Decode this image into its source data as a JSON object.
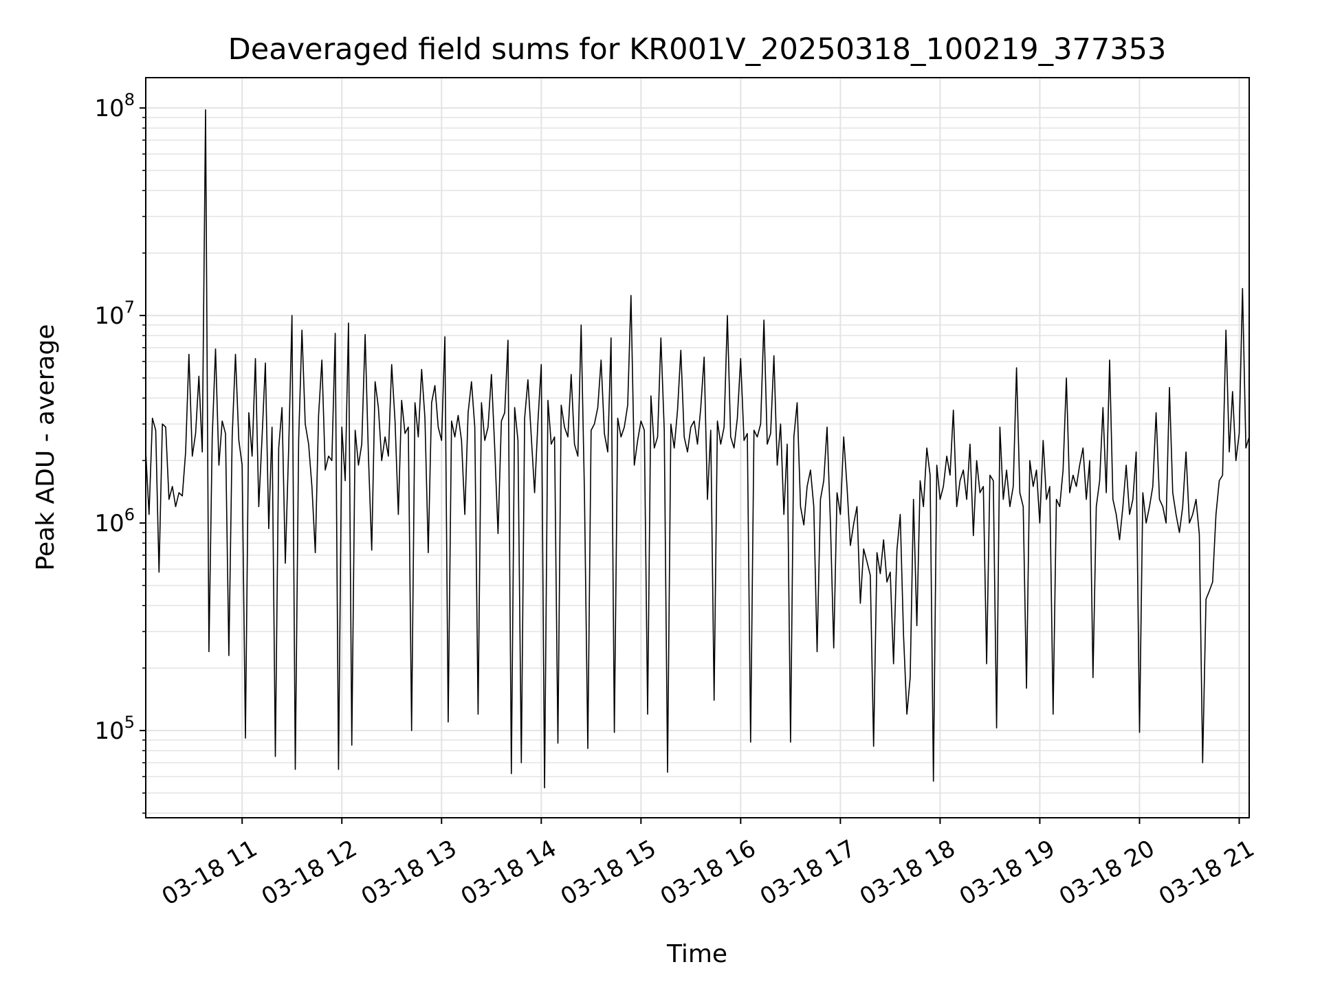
{
  "chart_data": {
    "type": "line",
    "title": "Deaveraged field sums for KR001V_20250318_100219_377353",
    "xlabel": "Time",
    "ylabel": "Peak ADU - average",
    "yscale": "log",
    "grid": true,
    "legend": "none",
    "x_start": "03-18 10:02",
    "x_end": "03-18 21:06",
    "xlim": [
      "03-18 10:02",
      "03-18 21:06"
    ],
    "ylim": [
      38000,
      140000000
    ],
    "x_ticks": [
      {
        "t": "03-18 11:00",
        "label": "03-18 11"
      },
      {
        "t": "03-18 12:00",
        "label": "03-18 12"
      },
      {
        "t": "03-18 13:00",
        "label": "03-18 13"
      },
      {
        "t": "03-18 14:00",
        "label": "03-18 14"
      },
      {
        "t": "03-18 15:00",
        "label": "03-18 15"
      },
      {
        "t": "03-18 16:00",
        "label": "03-18 16"
      },
      {
        "t": "03-18 17:00",
        "label": "03-18 17"
      },
      {
        "t": "03-18 18:00",
        "label": "03-18 18"
      },
      {
        "t": "03-18 19:00",
        "label": "03-18 19"
      },
      {
        "t": "03-18 20:00",
        "label": "03-18 20"
      },
      {
        "t": "03-18 21:00",
        "label": "03-18 21"
      }
    ],
    "y_ticks": [
      {
        "value": 100000,
        "base": "10",
        "exp": "5"
      },
      {
        "value": 1000000,
        "base": "10",
        "exp": "6"
      },
      {
        "value": 10000000,
        "base": "10",
        "exp": "7"
      },
      {
        "value": 100000000,
        "base": "10",
        "exp": "8"
      }
    ],
    "series": [
      {
        "line_color": "#000000",
        "sampling": "sparse approximation of a dense series (~1 sample per 2 minutes)",
        "x": [
          "03-18 10:02",
          "03-18 10:04",
          "03-18 10:06",
          "03-18 10:08",
          "03-18 10:10",
          "03-18 10:12",
          "03-18 10:14",
          "03-18 10:16",
          "03-18 10:18",
          "03-18 10:20",
          "03-18 10:22",
          "03-18 10:24",
          "03-18 10:26",
          "03-18 10:28",
          "03-18 10:30",
          "03-18 10:32",
          "03-18 10:34",
          "03-18 10:36",
          "03-18 10:38",
          "03-18 10:40",
          "03-18 10:42",
          "03-18 10:44",
          "03-18 10:46",
          "03-18 10:48",
          "03-18 10:50",
          "03-18 10:52",
          "03-18 10:54",
          "03-18 10:56",
          "03-18 10:58",
          "03-18 11:00",
          "03-18 11:02",
          "03-18 11:04",
          "03-18 11:06",
          "03-18 11:08",
          "03-18 11:10",
          "03-18 11:12",
          "03-18 11:14",
          "03-18 11:16",
          "03-18 11:18",
          "03-18 11:20",
          "03-18 11:22",
          "03-18 11:24",
          "03-18 11:26",
          "03-18 11:28",
          "03-18 11:30",
          "03-18 11:32",
          "03-18 11:34",
          "03-18 11:36",
          "03-18 11:38",
          "03-18 11:40",
          "03-18 11:42",
          "03-18 11:44",
          "03-18 11:46",
          "03-18 11:48",
          "03-18 11:50",
          "03-18 11:52",
          "03-18 11:54",
          "03-18 11:56",
          "03-18 11:58",
          "03-18 12:00",
          "03-18 12:02",
          "03-18 12:04",
          "03-18 12:06",
          "03-18 12:08",
          "03-18 12:10",
          "03-18 12:12",
          "03-18 12:14",
          "03-18 12:16",
          "03-18 12:18",
          "03-18 12:20",
          "03-18 12:22",
          "03-18 12:24",
          "03-18 12:26",
          "03-18 12:28",
          "03-18 12:30",
          "03-18 12:32",
          "03-18 12:34",
          "03-18 12:36",
          "03-18 12:38",
          "03-18 12:40",
          "03-18 12:42",
          "03-18 12:44",
          "03-18 12:46",
          "03-18 12:48",
          "03-18 12:50",
          "03-18 12:52",
          "03-18 12:54",
          "03-18 12:56",
          "03-18 12:58",
          "03-18 13:00",
          "03-18 13:02",
          "03-18 13:04",
          "03-18 13:06",
          "03-18 13:08",
          "03-18 13:10",
          "03-18 13:12",
          "03-18 13:14",
          "03-18 13:16",
          "03-18 13:18",
          "03-18 13:20",
          "03-18 13:22",
          "03-18 13:24",
          "03-18 13:26",
          "03-18 13:28",
          "03-18 13:30",
          "03-18 13:32",
          "03-18 13:34",
          "03-18 13:36",
          "03-18 13:38",
          "03-18 13:40",
          "03-18 13:42",
          "03-18 13:44",
          "03-18 13:46",
          "03-18 13:48",
          "03-18 13:50",
          "03-18 13:52",
          "03-18 13:54",
          "03-18 13:56",
          "03-18 13:58",
          "03-18 14:00",
          "03-18 14:02",
          "03-18 14:04",
          "03-18 14:06",
          "03-18 14:08",
          "03-18 14:10",
          "03-18 14:12",
          "03-18 14:14",
          "03-18 14:16",
          "03-18 14:18",
          "03-18 14:20",
          "03-18 14:22",
          "03-18 14:24",
          "03-18 14:26",
          "03-18 14:28",
          "03-18 14:30",
          "03-18 14:32",
          "03-18 14:34",
          "03-18 14:36",
          "03-18 14:38",
          "03-18 14:40",
          "03-18 14:42",
          "03-18 14:44",
          "03-18 14:46",
          "03-18 14:48",
          "03-18 14:50",
          "03-18 14:52",
          "03-18 14:54",
          "03-18 14:56",
          "03-18 14:58",
          "03-18 15:00",
          "03-18 15:02",
          "03-18 15:04",
          "03-18 15:06",
          "03-18 15:08",
          "03-18 15:10",
          "03-18 15:12",
          "03-18 15:14",
          "03-18 15:16",
          "03-18 15:18",
          "03-18 15:20",
          "03-18 15:22",
          "03-18 15:24",
          "03-18 15:26",
          "03-18 15:28",
          "03-18 15:30",
          "03-18 15:32",
          "03-18 15:34",
          "03-18 15:36",
          "03-18 15:38",
          "03-18 15:40",
          "03-18 15:42",
          "03-18 15:44",
          "03-18 15:46",
          "03-18 15:48",
          "03-18 15:50",
          "03-18 15:52",
          "03-18 15:54",
          "03-18 15:56",
          "03-18 15:58",
          "03-18 16:00",
          "03-18 16:02",
          "03-18 16:04",
          "03-18 16:06",
          "03-18 16:08",
          "03-18 16:10",
          "03-18 16:12",
          "03-18 16:14",
          "03-18 16:16",
          "03-18 16:18",
          "03-18 16:20",
          "03-18 16:22",
          "03-18 16:24",
          "03-18 16:26",
          "03-18 16:28",
          "03-18 16:30",
          "03-18 16:32",
          "03-18 16:34",
          "03-18 16:36",
          "03-18 16:38",
          "03-18 16:40",
          "03-18 16:42",
          "03-18 16:44",
          "03-18 16:46",
          "03-18 16:48",
          "03-18 16:50",
          "03-18 16:52",
          "03-18 16:54",
          "03-18 16:56",
          "03-18 16:58",
          "03-18 17:00",
          "03-18 17:02",
          "03-18 17:04",
          "03-18 17:06",
          "03-18 17:08",
          "03-18 17:10",
          "03-18 17:12",
          "03-18 17:14",
          "03-18 17:16",
          "03-18 17:18",
          "03-18 17:20",
          "03-18 17:22",
          "03-18 17:24",
          "03-18 17:26",
          "03-18 17:28",
          "03-18 17:30",
          "03-18 17:32",
          "03-18 17:34",
          "03-18 17:36",
          "03-18 17:38",
          "03-18 17:40",
          "03-18 17:42",
          "03-18 17:44",
          "03-18 17:46",
          "03-18 17:48",
          "03-18 17:50",
          "03-18 17:52",
          "03-18 17:54",
          "03-18 17:56",
          "03-18 17:58",
          "03-18 18:00",
          "03-18 18:02",
          "03-18 18:04",
          "03-18 18:06",
          "03-18 18:08",
          "03-18 18:10",
          "03-18 18:12",
          "03-18 18:14",
          "03-18 18:16",
          "03-18 18:18",
          "03-18 18:20",
          "03-18 18:22",
          "03-18 18:24",
          "03-18 18:26",
          "03-18 18:28",
          "03-18 18:30",
          "03-18 18:32",
          "03-18 18:34",
          "03-18 18:36",
          "03-18 18:38",
          "03-18 18:40",
          "03-18 18:42",
          "03-18 18:44",
          "03-18 18:46",
          "03-18 18:48",
          "03-18 18:50",
          "03-18 18:52",
          "03-18 18:54",
          "03-18 18:56",
          "03-18 18:58",
          "03-18 19:00",
          "03-18 19:02",
          "03-18 19:04",
          "03-18 19:06",
          "03-18 19:08",
          "03-18 19:10",
          "03-18 19:12",
          "03-18 19:14",
          "03-18 19:16",
          "03-18 19:18",
          "03-18 19:20",
          "03-18 19:22",
          "03-18 19:24",
          "03-18 19:26",
          "03-18 19:28",
          "03-18 19:30",
          "03-18 19:32",
          "03-18 19:34",
          "03-18 19:36",
          "03-18 19:38",
          "03-18 19:40",
          "03-18 19:42",
          "03-18 19:44",
          "03-18 19:46",
          "03-18 19:48",
          "03-18 19:50",
          "03-18 19:52",
          "03-18 19:54",
          "03-18 19:56",
          "03-18 19:58",
          "03-18 20:00",
          "03-18 20:02",
          "03-18 20:04",
          "03-18 20:06",
          "03-18 20:08",
          "03-18 20:10",
          "03-18 20:12",
          "03-18 20:14",
          "03-18 20:16",
          "03-18 20:18",
          "03-18 20:20",
          "03-18 20:22",
          "03-18 20:24",
          "03-18 20:26",
          "03-18 20:28",
          "03-18 20:30",
          "03-18 20:32",
          "03-18 20:34",
          "03-18 20:36",
          "03-18 20:38",
          "03-18 20:40",
          "03-18 20:42",
          "03-18 20:44",
          "03-18 20:46",
          "03-18 20:48",
          "03-18 20:50",
          "03-18 20:52",
          "03-18 20:54",
          "03-18 20:56",
          "03-18 20:58",
          "03-18 21:00",
          "03-18 21:02",
          "03-18 21:04",
          "03-18 21:06"
        ],
        "y": [
          2200000,
          1100000,
          3200000,
          2800000,
          580000,
          3000000,
          2900000,
          1300000,
          1500000,
          1200000,
          1400000,
          1350000,
          2200000,
          6500000,
          2100000,
          2700000,
          5100000,
          2200000,
          98000000,
          240000,
          2600000,
          6900000,
          1900000,
          3100000,
          2700000,
          230000,
          2600000,
          6500000,
          2500000,
          1900000,
          92000,
          3400000,
          2100000,
          6200000,
          1200000,
          2600000,
          5900000,
          940000,
          2900000,
          75000,
          2300000,
          3600000,
          640000,
          2300000,
          10000000,
          65000,
          2500000,
          8500000,
          3000000,
          2400000,
          1500000,
          720000,
          3300000,
          6100000,
          1800000,
          2100000,
          2000000,
          8200000,
          65000,
          2900000,
          1600000,
          9200000,
          85000,
          2800000,
          1900000,
          2400000,
          8100000,
          2100000,
          740000,
          4800000,
          3600000,
          2000000,
          2600000,
          2100000,
          5800000,
          3100000,
          1100000,
          3900000,
          2700000,
          2900000,
          100000,
          3800000,
          2600000,
          5500000,
          3200000,
          720000,
          3800000,
          4600000,
          2900000,
          2500000,
          7900000,
          110000,
          3100000,
          2600000,
          3300000,
          2500000,
          1100000,
          3400000,
          4800000,
          2900000,
          120000,
          3800000,
          2500000,
          2900000,
          5200000,
          2300000,
          890000,
          3100000,
          3400000,
          7600000,
          62000,
          3600000,
          2500000,
          70000,
          3200000,
          4900000,
          2600000,
          1400000,
          3100000,
          5800000,
          53000,
          3900000,
          2400000,
          2600000,
          87000,
          3700000,
          2900000,
          2600000,
          5200000,
          2400000,
          2100000,
          9000000,
          1400000,
          82000,
          2800000,
          3000000,
          3600000,
          6100000,
          2700000,
          2200000,
          7800000,
          98000,
          3200000,
          2600000,
          2900000,
          3700000,
          12500000,
          1900000,
          2500000,
          3100000,
          2800000,
          120000,
          4100000,
          2300000,
          2600000,
          7800000,
          2800000,
          63000,
          3000000,
          2300000,
          3500000,
          6800000,
          2600000,
          2200000,
          2900000,
          3100000,
          2400000,
          3600000,
          6300000,
          1300000,
          2800000,
          140000,
          3100000,
          2400000,
          2900000,
          10000000,
          2600000,
          2300000,
          3200000,
          6200000,
          2500000,
          2700000,
          88000,
          2800000,
          2600000,
          3000000,
          9500000,
          2400000,
          2700000,
          6400000,
          1900000,
          3000000,
          1100000,
          2400000,
          88000,
          2600000,
          3800000,
          1200000,
          980000,
          1500000,
          1800000,
          1200000,
          240000,
          1300000,
          1600000,
          2900000,
          1000000,
          250000,
          1400000,
          1100000,
          2600000,
          1500000,
          780000,
          990000,
          1200000,
          410000,
          750000,
          650000,
          560000,
          84000,
          720000,
          570000,
          830000,
          520000,
          580000,
          210000,
          740000,
          1100000,
          290000,
          120000,
          180000,
          1300000,
          320000,
          1600000,
          1200000,
          2300000,
          1700000,
          57000,
          1900000,
          1300000,
          1500000,
          2100000,
          1700000,
          3500000,
          1200000,
          1600000,
          1800000,
          1300000,
          2400000,
          870000,
          2000000,
          1400000,
          1500000,
          210000,
          1700000,
          1600000,
          103000,
          2900000,
          1300000,
          1800000,
          1200000,
          1500000,
          5600000,
          1400000,
          1200000,
          160000,
          2000000,
          1500000,
          1800000,
          1000000,
          2500000,
          1300000,
          1500000,
          120000,
          1300000,
          1200000,
          1800000,
          5000000,
          1400000,
          1700000,
          1500000,
          1900000,
          2300000,
          1300000,
          2000000,
          180000,
          1200000,
          1600000,
          3600000,
          1400000,
          6100000,
          1300000,
          1100000,
          830000,
          1200000,
          1900000,
          1100000,
          1300000,
          2200000,
          98000,
          1400000,
          1000000,
          1200000,
          1500000,
          3400000,
          1300000,
          1200000,
          1000000,
          4500000,
          1400000,
          1100000,
          900000,
          1200000,
          2200000,
          1000000,
          1100000,
          1300000,
          880000,
          70000,
          430000,
          470000,
          520000,
          1100000,
          1600000,
          1700000,
          8500000,
          2200000,
          4300000,
          2000000,
          2700000,
          13500000,
          2300000,
          2600000
        ]
      }
    ]
  }
}
